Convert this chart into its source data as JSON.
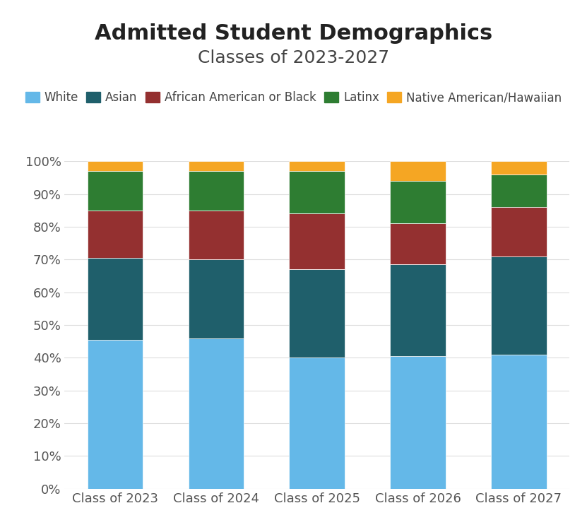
{
  "title": "Admitted Student Demographics",
  "subtitle": "Classes of 2023-2027",
  "categories": [
    "Class of 2023",
    "Class of 2024",
    "Class of 2025",
    "Class of 2026",
    "Class of 2027"
  ],
  "series": [
    {
      "label": "White",
      "color": "#64B8E8",
      "values": [
        45.5,
        46.0,
        40.0,
        40.5,
        41.0
      ]
    },
    {
      "label": "Asian",
      "color": "#1F5F6B",
      "values": [
        25.0,
        24.0,
        27.0,
        28.0,
        30.0
      ]
    },
    {
      "label": "African American or Black",
      "color": "#943030",
      "values": [
        14.5,
        15.0,
        17.0,
        12.5,
        15.0
      ]
    },
    {
      "label": "Latinx",
      "color": "#2E7D32",
      "values": [
        12.0,
        12.0,
        13.0,
        13.0,
        10.0
      ]
    },
    {
      "label": "Native American/Hawaiian",
      "color": "#F5A623",
      "values": [
        3.0,
        3.0,
        3.0,
        6.0,
        4.0
      ]
    }
  ],
  "ylim": [
    0,
    100
  ],
  "yticks": [
    0,
    10,
    20,
    30,
    40,
    50,
    60,
    70,
    80,
    90,
    100
  ],
  "background_color": "#FFFFFF",
  "grid_color": "#DDDDDD",
  "title_fontsize": 22,
  "subtitle_fontsize": 18,
  "legend_fontsize": 12,
  "tick_fontsize": 13
}
